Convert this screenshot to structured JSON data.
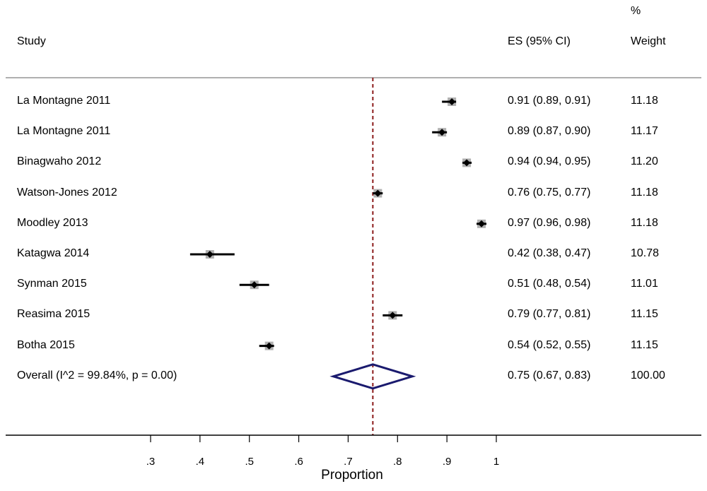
{
  "header": {
    "study_label": "Study",
    "es_label": "ES (95% CI)",
    "weight_pct": "%",
    "weight_label": "Weight"
  },
  "colors": {
    "reference_line": "#8b1a1a",
    "diamond": "#1a1a6e",
    "marker": "#000000",
    "weight_box": "#b0b0b0",
    "separator": "#b0b0b0"
  },
  "chart_data": {
    "type": "forest",
    "xlabel": "Proportion",
    "xticks": [
      0.3,
      0.4,
      0.5,
      0.6,
      0.7,
      0.8,
      0.9,
      1.0
    ],
    "xtick_labels": [
      ".3",
      ".4",
      ".5",
      ".6",
      ".7",
      ".8",
      ".9",
      "1"
    ],
    "xlim": [
      0.3,
      1.0
    ],
    "reference_line": 0.75,
    "studies": [
      {
        "name": "La Montagne 2011",
        "es": 0.91,
        "lo": 0.89,
        "hi": 0.91,
        "es_text": "0.91 (0.89, 0.91)",
        "weight": "11.18"
      },
      {
        "name": "La Montagne 2011",
        "es": 0.89,
        "lo": 0.87,
        "hi": 0.9,
        "es_text": "0.89 (0.87, 0.90)",
        "weight": "11.17"
      },
      {
        "name": "Binagwaho 2012",
        "es": 0.94,
        "lo": 0.94,
        "hi": 0.95,
        "es_text": "0.94 (0.94, 0.95)",
        "weight": "11.20"
      },
      {
        "name": "Watson-Jones 2012",
        "es": 0.76,
        "lo": 0.75,
        "hi": 0.77,
        "es_text": "0.76 (0.75, 0.77)",
        "weight": "11.18"
      },
      {
        "name": "Moodley 2013",
        "es": 0.97,
        "lo": 0.96,
        "hi": 0.98,
        "es_text": "0.97 (0.96, 0.98)",
        "weight": "11.18"
      },
      {
        "name": "Katagwa 2014",
        "es": 0.42,
        "lo": 0.38,
        "hi": 0.47,
        "es_text": "0.42 (0.38, 0.47)",
        "weight": "10.78"
      },
      {
        "name": "Synman 2015",
        "es": 0.51,
        "lo": 0.48,
        "hi": 0.54,
        "es_text": "0.51 (0.48, 0.54)",
        "weight": "11.01"
      },
      {
        "name": "Reasima 2015",
        "es": 0.79,
        "lo": 0.77,
        "hi": 0.81,
        "es_text": "0.79 (0.77, 0.81)",
        "weight": "11.15"
      },
      {
        "name": "Botha 2015",
        "es": 0.54,
        "lo": 0.52,
        "hi": 0.55,
        "es_text": "0.54 (0.52, 0.55)",
        "weight": "11.15"
      }
    ],
    "overall": {
      "name": "Overall  (I^2 = 99.84%, p = 0.00)",
      "es": 0.75,
      "lo": 0.67,
      "hi": 0.83,
      "es_text": "0.75 (0.67, 0.83)",
      "weight": "100.00"
    }
  }
}
